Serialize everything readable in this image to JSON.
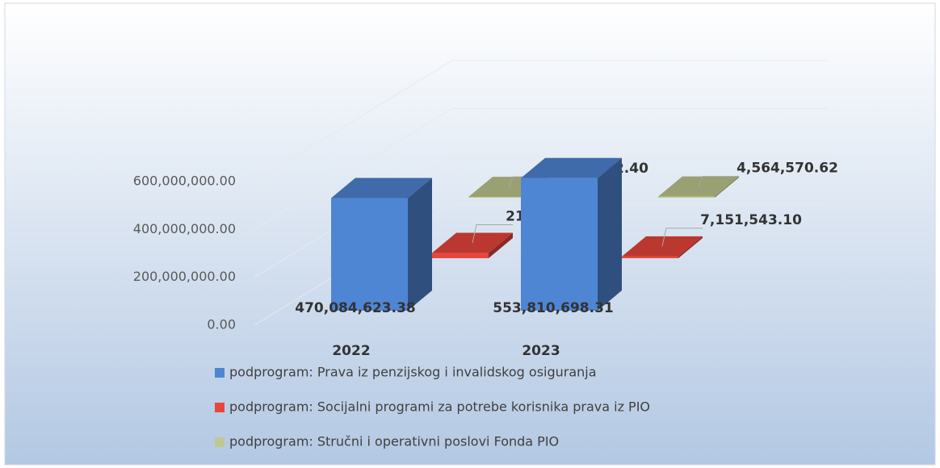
{
  "chart_data": {
    "type": "bar",
    "categories": [
      "2022",
      "2023"
    ],
    "series": [
      {
        "name": "podprogram: Prava iz penzijskog i invalidskog osiguranja",
        "color": "#4f86d4",
        "values": [
          470084623.38,
          553810698.31
        ],
        "value_labels": [
          "470,084,623.38",
          "553,810,698.31"
        ]
      },
      {
        "name": "podprogram: Socijalni programi za potrebe korisnika prava iz PIO",
        "color": "#e8463c",
        "values": [
          21713510.0,
          7151543.1
        ],
        "value_labels": [
          "21,713,510.00",
          "7,151,543.10"
        ]
      },
      {
        "name": "podprogram: Stručni i operativni poslovi Fonda PIO",
        "color": "#bfc98f",
        "values": [
          3112412.4,
          4564570.62
        ],
        "value_labels": [
          "3,112,412.40",
          "4,564,570.62"
        ]
      }
    ],
    "ylim": [
      0,
      600000000
    ],
    "yticks": [
      {
        "value": 0,
        "label": "0.00"
      },
      {
        "value": 200000000,
        "label": "200,000,000.00"
      },
      {
        "value": 400000000,
        "label": "400,000,000.00"
      },
      {
        "value": 600000000,
        "label": "600,000,000.00"
      }
    ],
    "grid": true,
    "legend": "bottom"
  }
}
